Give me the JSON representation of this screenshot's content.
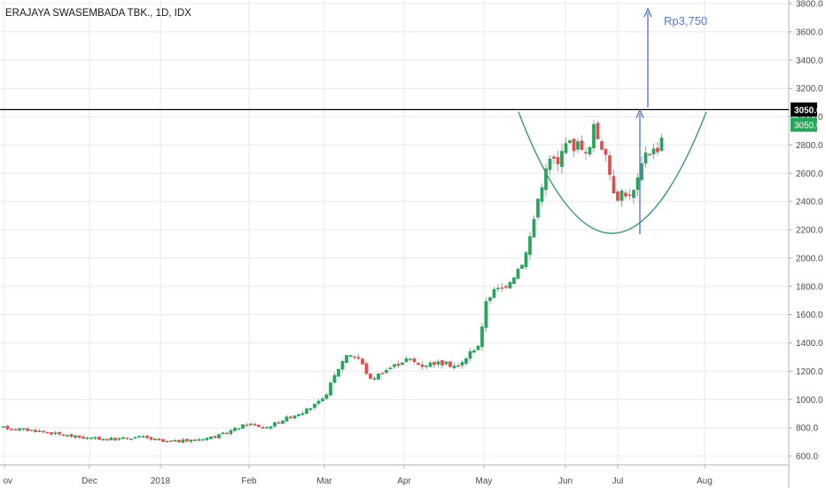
{
  "header": {
    "title": "ERAJAYA SWASEMBADA TBK., 1D, IDX"
  },
  "chart_data": {
    "type": "candlestick",
    "title": "ERAJAYA SWASEMBADA TBK., 1D, IDX",
    "ylim": [
      550,
      3850
    ],
    "y_ticks": [
      "600.0",
      "800.0",
      "1000.0",
      "1200.0",
      "1400.0",
      "1600.0",
      "1800.0",
      "2000.0",
      "2200.0",
      "2400.0",
      "2600.0",
      "2800.0",
      "3000.0",
      "3200.0",
      "3400.0",
      "3600.0",
      "3800.0"
    ],
    "x_ticks": [
      "ov",
      "Dec",
      "2018",
      "Feb",
      "Mar",
      "Apr",
      "May",
      "Jun",
      "Jul",
      "Aug"
    ],
    "grid": true,
    "colors": {
      "up": "#26a65b",
      "down": "#e04f4f",
      "grid": "#e8e8e8",
      "resistance": "#000000",
      "arc": "#3a9c6e",
      "arrow": "#5b79c9",
      "target_text": "#5b79c9"
    },
    "resistance_level": 3050.0,
    "price_labels": [
      {
        "text": "3050.0",
        "style": "dark"
      },
      {
        "text": "3050.0",
        "style": "green"
      }
    ],
    "target_label": "Rp3,750",
    "series_close_approx": [
      {
        "period": "Nov",
        "close": 800
      },
      {
        "period": "Dec",
        "close": 720
      },
      {
        "period": "Jan",
        "close": 740
      },
      {
        "period": "Feb",
        "close": 850
      },
      {
        "period": "Mar",
        "close": 1250
      },
      {
        "period": "Apr",
        "close": 1250
      },
      {
        "period": "May",
        "close": 1400
      },
      {
        "period": "Jun",
        "close": 2950
      },
      {
        "period": "Jul",
        "close": 2500
      },
      {
        "period": "Jul-end",
        "close": 3050
      }
    ]
  }
}
